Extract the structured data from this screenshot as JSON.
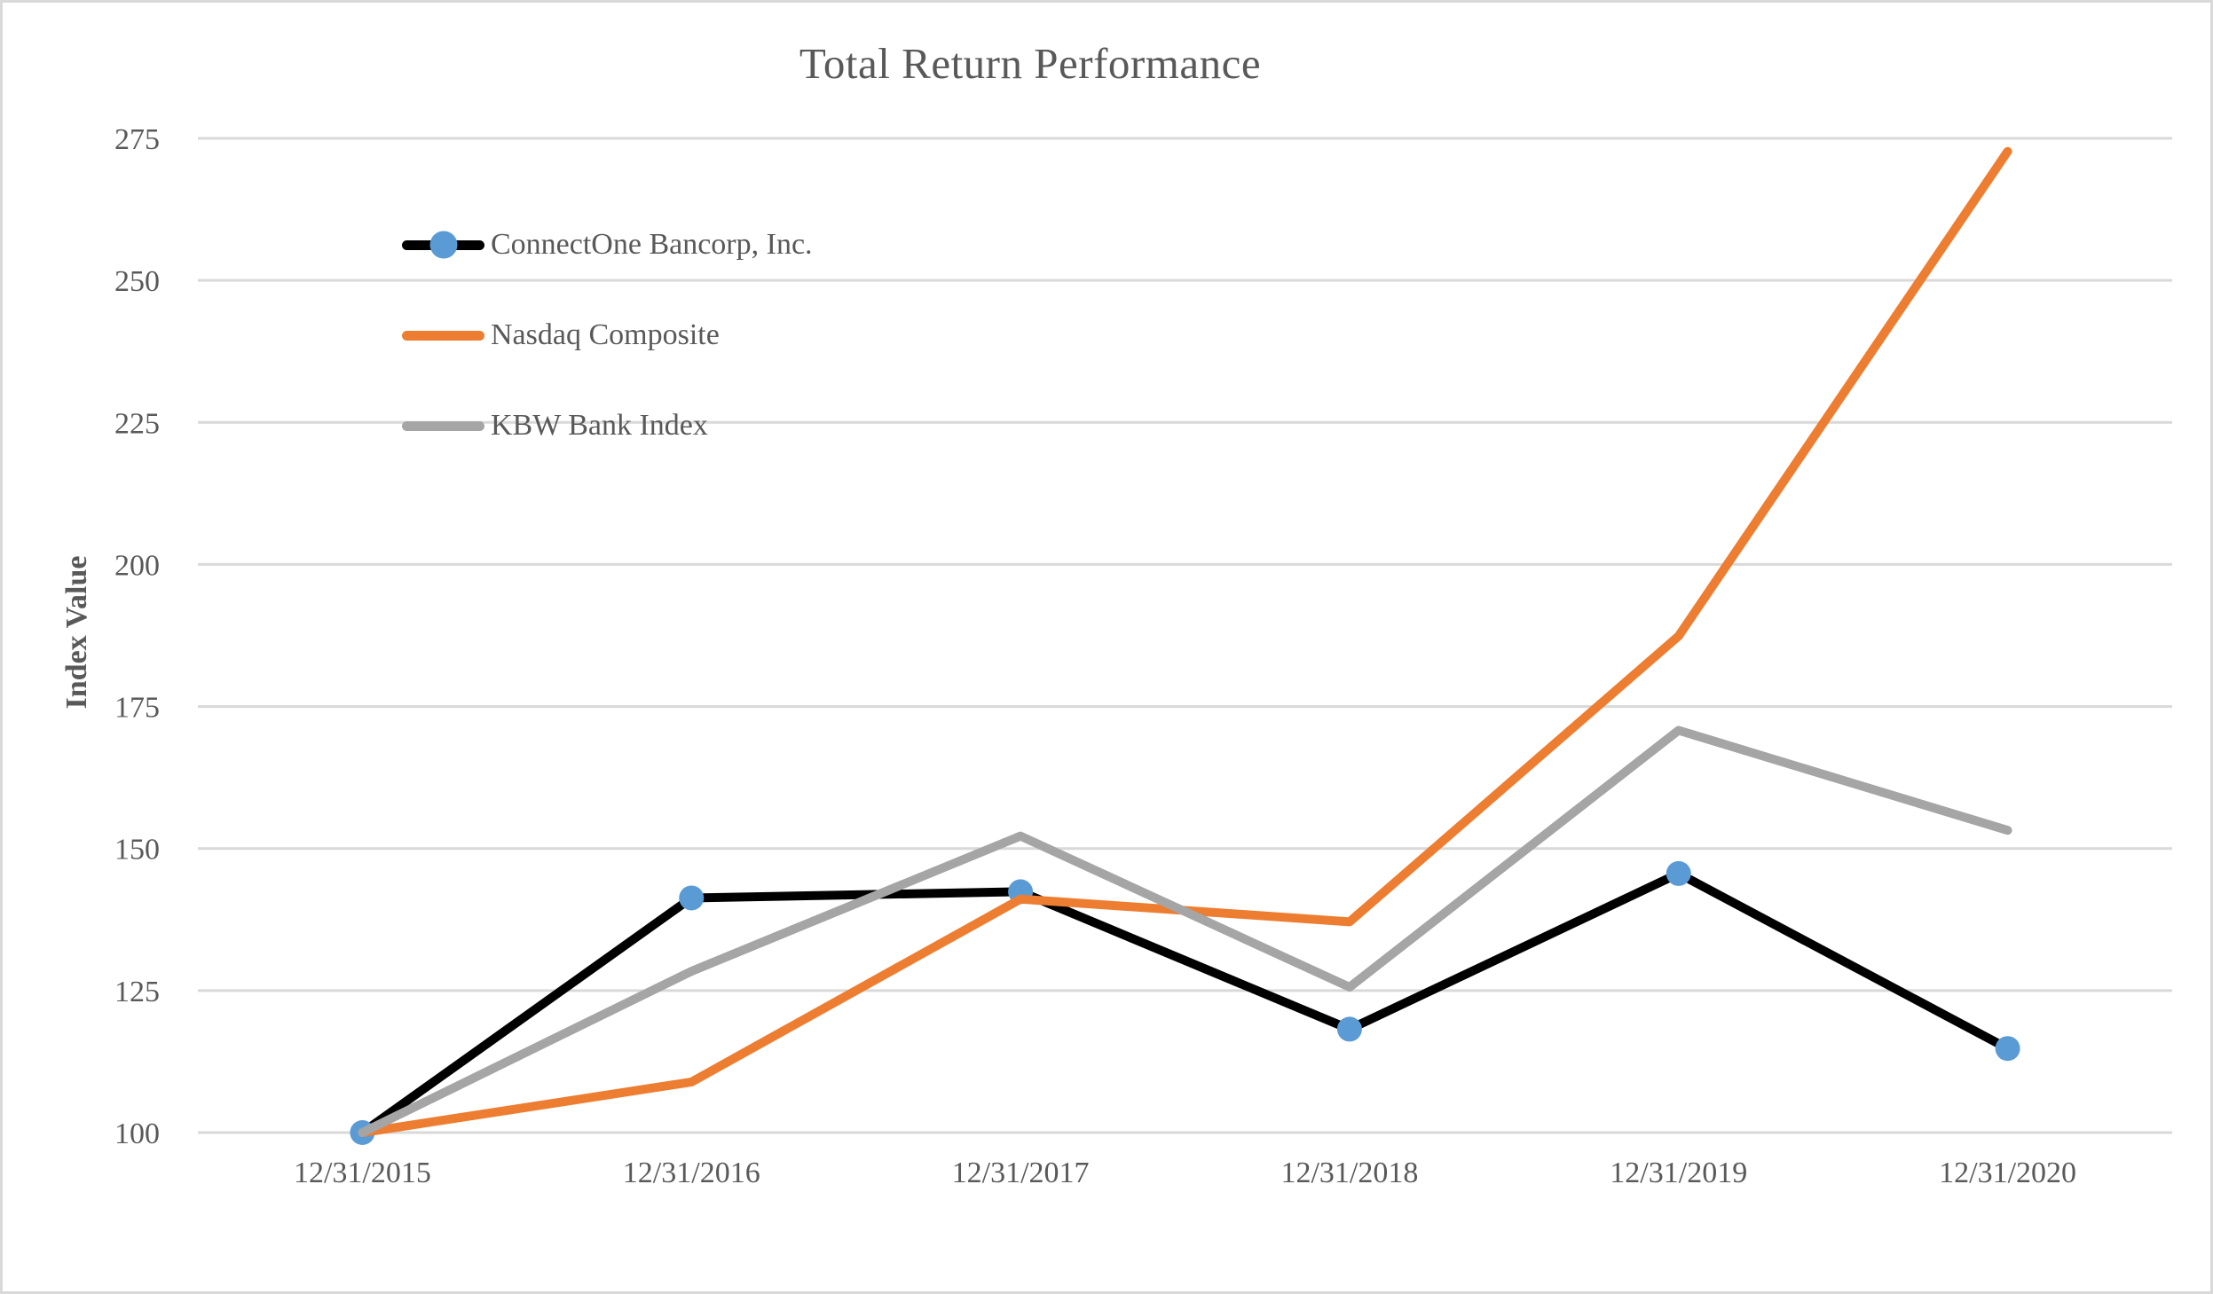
{
  "page": {
    "background_color": "#ffffff",
    "border_color": "#d9d9d9"
  },
  "chart_data": {
    "type": "line",
    "title": "Total Return Performance",
    "xlabel": "",
    "ylabel": "Index Value",
    "categories": [
      "12/31/2015",
      "12/31/2016",
      "12/31/2017",
      "12/31/2018",
      "12/31/2019",
      "12/31/2020"
    ],
    "series": [
      {
        "name": "ConnectOne Bancorp, Inc.",
        "color": "#000000",
        "marker": "circle",
        "marker_color": "#5b9bd5",
        "values": [
          100,
          141.3,
          142.4,
          118.2,
          145.6,
          114.8
        ]
      },
      {
        "name": "Nasdaq Composite",
        "color": "#ed7d31",
        "marker": "none",
        "marker_color": "",
        "values": [
          100,
          108.9,
          141.1,
          137.1,
          187.4,
          272.7
        ]
      },
      {
        "name": "KBW Bank Index",
        "color": "#a5a5a5",
        "marker": "none",
        "marker_color": "",
        "values": [
          100,
          128.4,
          152.2,
          125.6,
          170.8,
          153.2
        ]
      }
    ],
    "yticks": [
      100,
      125,
      150,
      175,
      200,
      225,
      250,
      275
    ],
    "ylim": [
      100,
      275
    ],
    "grid": "horizontal",
    "gridline_color": "#d9d9d9",
    "text_color": "#595959",
    "legend_position": "top-left-inside"
  }
}
